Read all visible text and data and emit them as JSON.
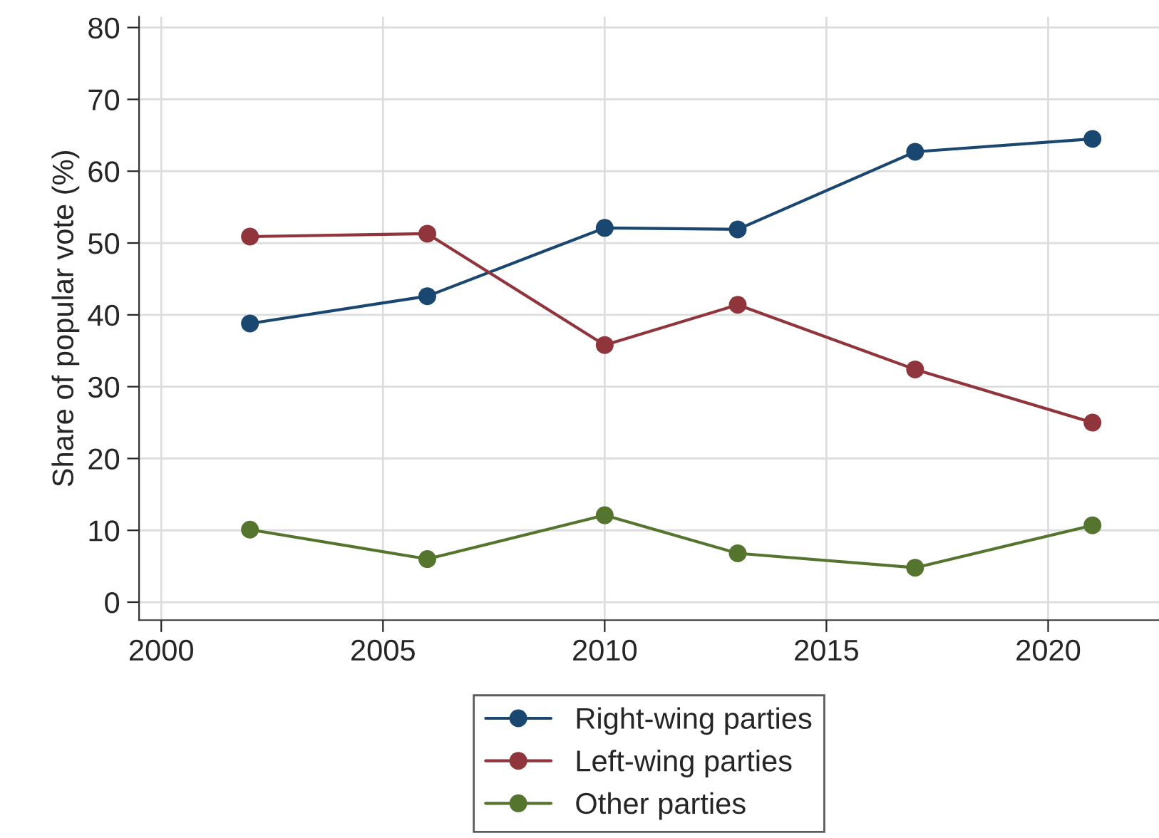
{
  "chart_data": {
    "type": "line",
    "ylabel": "Share of popular vote (%)",
    "x": [
      2002,
      2006,
      2010,
      2013,
      2017,
      2021
    ],
    "series": [
      {
        "name": "Right-wing parties",
        "color": "#1a476f",
        "values": [
          38.8,
          42.6,
          52.1,
          51.9,
          62.7,
          64.5
        ]
      },
      {
        "name": "Left-wing parties",
        "color": "#90353b",
        "values": [
          50.9,
          51.3,
          35.8,
          41.4,
          32.4,
          25.0
        ]
      },
      {
        "name": "Other parties",
        "color": "#55752f",
        "values": [
          10.1,
          6.0,
          12.1,
          6.8,
          4.8,
          10.7
        ]
      }
    ],
    "xlim": [
      1999.5,
      2022.5
    ],
    "xticks": [
      2000,
      2005,
      2010,
      2015,
      2020
    ],
    "ylim": [
      -2.5,
      81.5
    ],
    "yticks": [
      0,
      10,
      20,
      30,
      40,
      50,
      60,
      70,
      80
    ],
    "grid": true,
    "legend": "bottom",
    "marker": "circle",
    "line_style": "solid"
  }
}
